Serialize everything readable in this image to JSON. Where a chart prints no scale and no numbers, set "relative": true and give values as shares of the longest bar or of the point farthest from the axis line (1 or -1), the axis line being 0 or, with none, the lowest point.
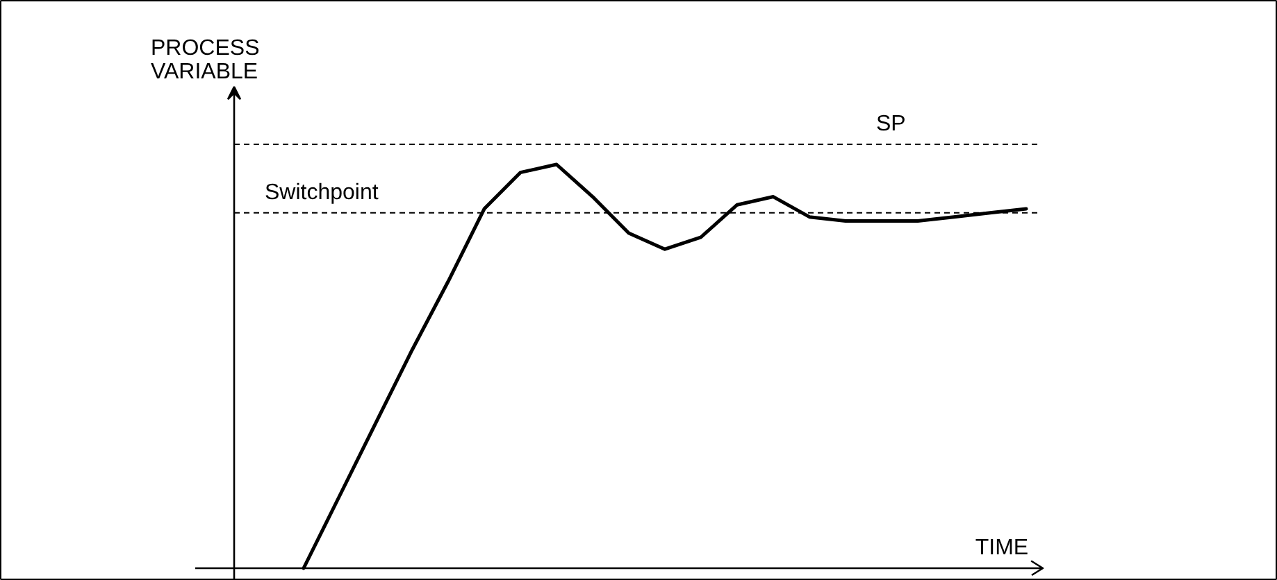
{
  "chart_data": {
    "type": "line",
    "relative": true,
    "xlabel": "TIME",
    "ylabel": "PROCESS\nVARIABLE",
    "color": "#000000",
    "categories": [
      null,
      null,
      null,
      null,
      null,
      null,
      null,
      null,
      null,
      null,
      null,
      null,
      null,
      null,
      null,
      null,
      null,
      null,
      null,
      null,
      null
    ],
    "values": [
      0,
      0.18,
      0.36,
      0.54,
      0.71,
      0.89,
      0.98,
      1.0,
      0.92,
      0.83,
      0.79,
      0.82,
      0.9,
      0.92,
      0.87,
      0.86,
      0.86,
      0.86,
      0.87,
      0.88,
      0.89
    ],
    "ref_lines": [
      {
        "axis": "y",
        "value": 1.05,
        "label": "SP",
        "line_style": "dashed",
        "color": "#000000"
      },
      {
        "axis": "y",
        "value": 0.88,
        "label": "Switchpoint",
        "line_style": "dashed",
        "color": "#000000"
      }
    ],
    "grid": false
  }
}
